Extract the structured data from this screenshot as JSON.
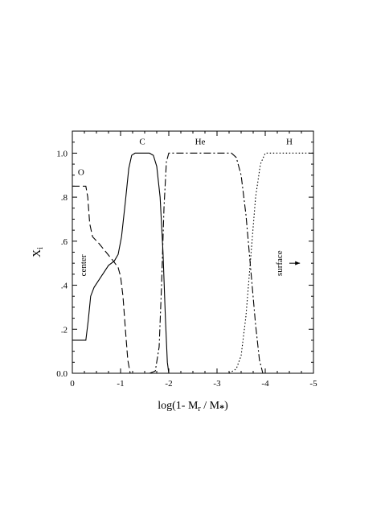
{
  "chart_data": {
    "type": "line",
    "xlabel": {
      "base": "log(1- M",
      "sub1": "r",
      "mid": " / M",
      "sub2": "*",
      "end": ")"
    },
    "ylabel": {
      "base": "X",
      "sub": "i"
    },
    "xlim": [
      0,
      -5
    ],
    "ylim": [
      0,
      1.1
    ],
    "x_ticks": [
      0,
      -1,
      -2,
      -3,
      -4,
      -5
    ],
    "x_tick_labels": [
      "0",
      "-1",
      "-2",
      "-3",
      "-4",
      "-5"
    ],
    "y_ticks": [
      0,
      0.2,
      0.4,
      0.6,
      0.8,
      1.0
    ],
    "y_tick_labels": [
      "0.0",
      ".2",
      ".4",
      ".6",
      ".8",
      "1.0"
    ],
    "grid": false,
    "series": [
      {
        "name": "O",
        "style": "dashed",
        "points": [
          [
            0,
            0.85
          ],
          [
            -0.28,
            0.85
          ],
          [
            -0.32,
            0.8
          ],
          [
            -0.36,
            0.68
          ],
          [
            -0.42,
            0.62
          ],
          [
            -0.55,
            0.59
          ],
          [
            -0.7,
            0.55
          ],
          [
            -0.85,
            0.51
          ],
          [
            -0.95,
            0.48
          ],
          [
            -1.0,
            0.44
          ],
          [
            -1.05,
            0.35
          ],
          [
            -1.1,
            0.2
          ],
          [
            -1.15,
            0.06
          ],
          [
            -1.2,
            0.0
          ]
        ]
      },
      {
        "name": "C",
        "style": "solid",
        "points": [
          [
            0,
            0.15
          ],
          [
            -0.28,
            0.15
          ],
          [
            -0.33,
            0.24
          ],
          [
            -0.38,
            0.35
          ],
          [
            -0.45,
            0.39
          ],
          [
            -0.6,
            0.44
          ],
          [
            -0.75,
            0.49
          ],
          [
            -0.87,
            0.51
          ],
          [
            -0.95,
            0.54
          ],
          [
            -1.02,
            0.62
          ],
          [
            -1.1,
            0.78
          ],
          [
            -1.17,
            0.93
          ],
          [
            -1.23,
            0.99
          ],
          [
            -1.3,
            1.0
          ],
          [
            -1.6,
            1.0
          ],
          [
            -1.68,
            0.99
          ],
          [
            -1.75,
            0.94
          ],
          [
            -1.82,
            0.8
          ],
          [
            -1.88,
            0.55
          ],
          [
            -1.93,
            0.25
          ],
          [
            -1.97,
            0.05
          ],
          [
            -2.0,
            0.0
          ]
        ]
      },
      {
        "name": "He",
        "style": "dash-dot",
        "points": [
          [
            -1.6,
            0.0
          ],
          [
            -1.72,
            0.01
          ],
          [
            -1.8,
            0.12
          ],
          [
            -1.85,
            0.4
          ],
          [
            -1.9,
            0.75
          ],
          [
            -1.95,
            0.96
          ],
          [
            -2.0,
            1.0
          ],
          [
            -3.3,
            1.0
          ],
          [
            -3.4,
            0.98
          ],
          [
            -3.5,
            0.9
          ],
          [
            -3.6,
            0.72
          ],
          [
            -3.7,
            0.47
          ],
          [
            -3.8,
            0.22
          ],
          [
            -3.88,
            0.06
          ],
          [
            -3.95,
            0.0
          ]
        ]
      },
      {
        "name": "H",
        "style": "dotted",
        "points": [
          [
            -3.25,
            0.0
          ],
          [
            -3.4,
            0.02
          ],
          [
            -3.5,
            0.08
          ],
          [
            -3.6,
            0.26
          ],
          [
            -3.7,
            0.53
          ],
          [
            -3.8,
            0.8
          ],
          [
            -3.9,
            0.95
          ],
          [
            -4.0,
            1.0
          ],
          [
            -5.0,
            1.0
          ]
        ]
      }
    ],
    "labels": [
      {
        "text": "O",
        "x": -0.18,
        "y": 0.9,
        "rotate": false
      },
      {
        "text": "C",
        "x": -1.45,
        "y": 1.04,
        "rotate": false
      },
      {
        "text": "He",
        "x": -2.65,
        "y": 1.04,
        "rotate": false
      },
      {
        "text": "H",
        "x": -4.5,
        "y": 1.04,
        "rotate": false
      },
      {
        "text": "center",
        "x": -0.28,
        "y": 0.49,
        "rotate": true
      },
      {
        "text": "surface",
        "x": -4.35,
        "y": 0.5,
        "rotate": true
      }
    ],
    "arrow": {
      "from": [
        -4.5,
        0.5
      ],
      "to": [
        -4.72,
        0.5
      ]
    }
  }
}
